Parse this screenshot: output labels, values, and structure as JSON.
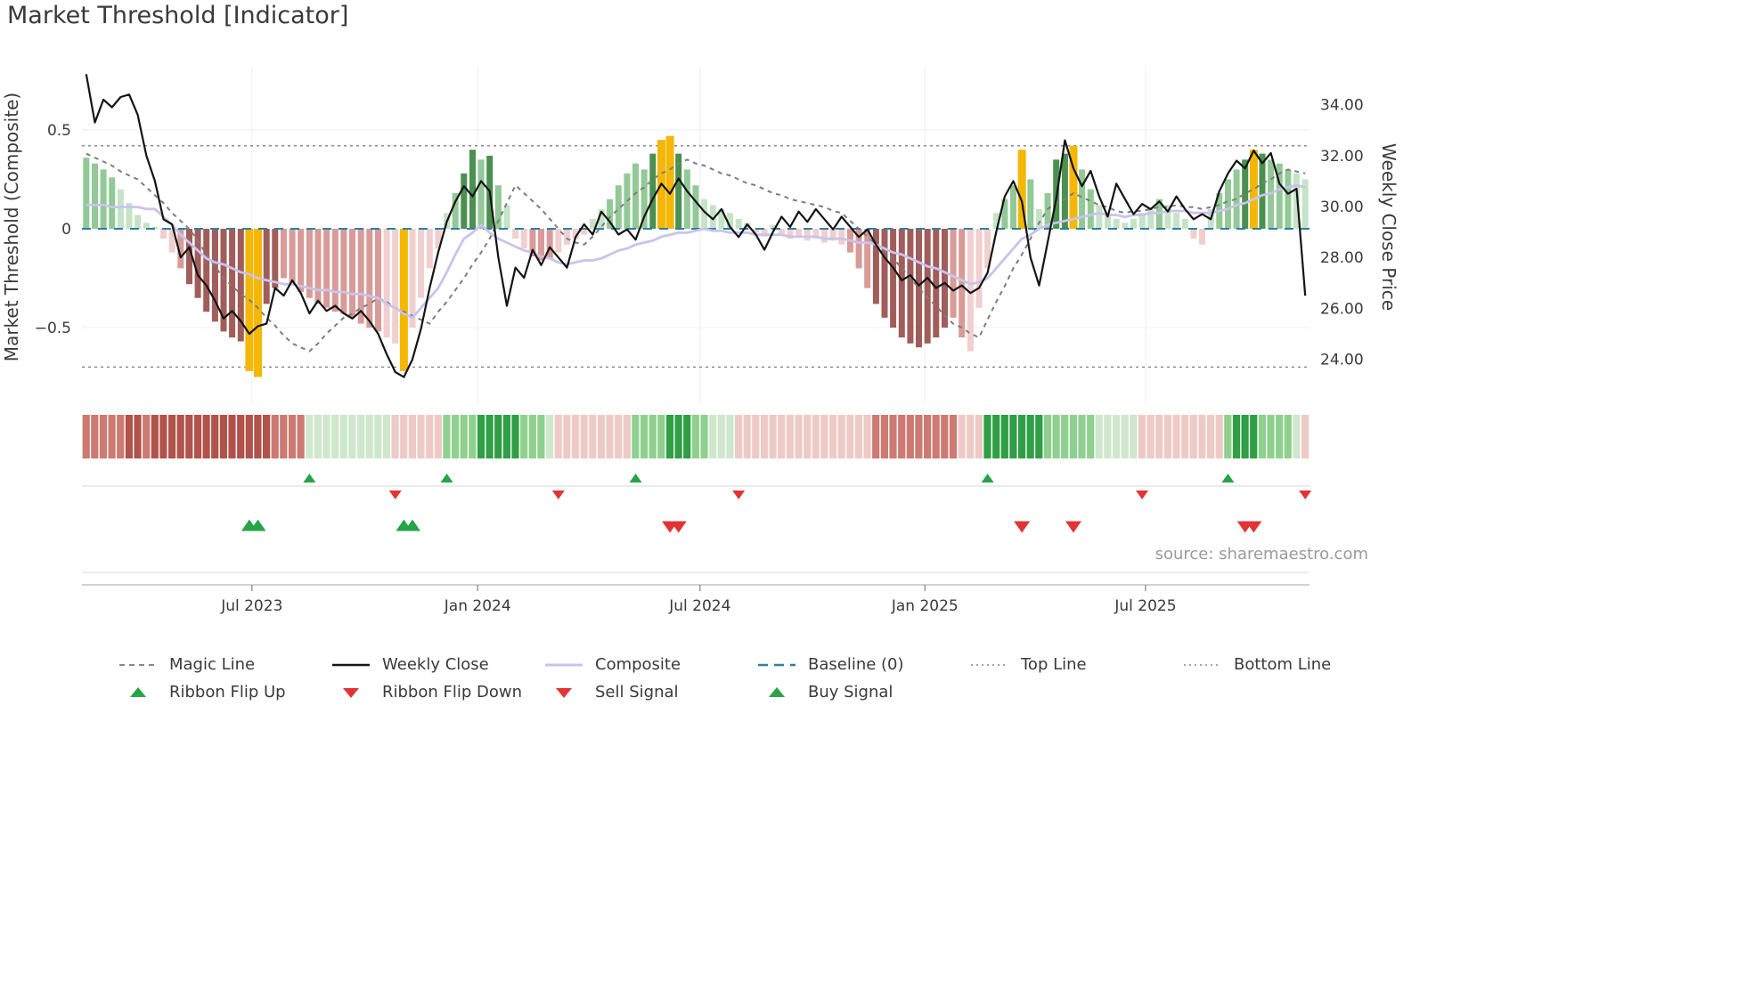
{
  "title": "Market Threshold [Indicator]",
  "source": "source: sharemaestro.com",
  "axes": {
    "left_label": "Market Threshold (Composite)",
    "right_label": "Weekly Close Price",
    "left_ticks": [
      {
        "value": 0.5,
        "label": "0.5"
      },
      {
        "value": 0.0,
        "label": "0"
      },
      {
        "value": -0.5,
        "label": "−0.5"
      }
    ],
    "right_ticks": [
      {
        "value": 34,
        "label": "34.00"
      },
      {
        "value": 32,
        "label": "32.00"
      },
      {
        "value": 30,
        "label": "30.00"
      },
      {
        "value": 28,
        "label": "28.00"
      },
      {
        "value": 26,
        "label": "26.00"
      },
      {
        "value": 24,
        "label": "24.00"
      }
    ],
    "x_ticks": [
      {
        "week": 19.8,
        "label": "Jul 2023"
      },
      {
        "week": 46.1,
        "label": "Jan 2024"
      },
      {
        "week": 72.0,
        "label": "Jul 2024"
      },
      {
        "week": 98.2,
        "label": "Jan 2025"
      },
      {
        "week": 123.9,
        "label": "Jul 2025"
      }
    ]
  },
  "colors": {
    "weekly_close": "#141414",
    "composite_line": "#c9c3ec",
    "magic_line": "#7d7d7d",
    "baseline": "#2e7fa3",
    "top_bottom_line": "#8c8c8c",
    "signal_green": "#27a348",
    "signal_red": "#e23434",
    "grid": "#efefef",
    "separator": "#e0e0e0",
    "axis_line": "#c4c4c4",
    "tick_text": "#3a3a3a"
  },
  "palette": {
    "bar": {
      "G1": "#c5e3c6",
      "G2": "#92c996",
      "G3": "#4a9050",
      "R1": "#f1cfce",
      "R2": "#d89b98",
      "R3": "#a15d59",
      "GOLD": "#f4b705"
    },
    "ribbon": {
      "G1": "#cfe7cc",
      "G2": "#8fd08f",
      "G3": "#2f9e44",
      "R1": "#eecac6",
      "R2": "#cc7a72",
      "R3": "#b1524b"
    }
  },
  "chart_data": {
    "type": "bar",
    "description": "Weekly market-threshold composite histogram with overlaid weekly close price, composite and magic lines, ribbon heatmap and trade signals. Weeks run from Feb 2023 to Nov 2025.",
    "ylim_left": [
      -0.85,
      0.85
    ],
    "ylim_right": [
      23.0,
      35.5
    ],
    "reference_lines": {
      "baseline": 0.0,
      "top_line": 0.42,
      "bottom_line": -0.7
    },
    "threshold": [
      0.36,
      0.33,
      0.3,
      0.26,
      0.2,
      0.13,
      0.07,
      0.03,
      0.01,
      -0.05,
      -0.12,
      -0.2,
      -0.28,
      -0.35,
      -0.42,
      -0.47,
      -0.52,
      -0.55,
      -0.57,
      -0.72,
      -0.75,
      -0.38,
      -0.3,
      -0.25,
      -0.28,
      -0.32,
      -0.35,
      -0.38,
      -0.4,
      -0.42,
      -0.43,
      -0.45,
      -0.48,
      -0.5,
      -0.52,
      -0.55,
      -0.58,
      -0.72,
      -0.5,
      -0.35,
      -0.2,
      -0.1,
      0.08,
      0.18,
      0.28,
      0.4,
      0.35,
      0.37,
      0.22,
      0.12,
      -0.05,
      -0.1,
      -0.14,
      -0.16,
      -0.15,
      -0.12,
      -0.08,
      -0.05,
      -0.03,
      0.05,
      0.1,
      0.15,
      0.22,
      0.28,
      0.33,
      0.3,
      0.38,
      0.45,
      0.47,
      0.38,
      0.3,
      0.22,
      0.15,
      0.12,
      0.1,
      0.08,
      0.05,
      0.03,
      -0.02,
      -0.04,
      0.02,
      -0.03,
      -0.05,
      -0.04,
      -0.06,
      -0.05,
      -0.07,
      -0.06,
      -0.08,
      -0.12,
      -0.2,
      -0.3,
      -0.38,
      -0.45,
      -0.5,
      -0.55,
      -0.58,
      -0.6,
      -0.58,
      -0.55,
      -0.5,
      -0.45,
      -0.55,
      -0.62,
      -0.4,
      -0.2,
      0.08,
      0.15,
      0.22,
      0.4,
      0.25,
      0.1,
      0.18,
      0.35,
      0.38,
      0.42,
      0.3,
      0.2,
      0.12,
      0.08,
      0.05,
      0.03,
      0.05,
      0.08,
      0.1,
      0.15,
      0.12,
      0.08,
      0.05,
      -0.05,
      -0.08,
      0.1,
      0.18,
      0.25,
      0.3,
      0.35,
      0.4,
      0.38,
      0.35,
      0.33,
      0.3,
      0.28,
      0.25
    ],
    "bar_colors": [
      "G2",
      "G2",
      "G2",
      "G2",
      "G1",
      "G1",
      "G1",
      "G1",
      "G1",
      "R1",
      "R1",
      "R2",
      "R3",
      "R3",
      "R3",
      "R3",
      "R3",
      "R3",
      "R3",
      "GOLD",
      "GOLD",
      "R3",
      "R3",
      "R2",
      "R2",
      "R2",
      "R2",
      "R2",
      "R2",
      "R2",
      "R2",
      "R2",
      "R2",
      "R2",
      "R2",
      "R1",
      "R1",
      "GOLD",
      "R1",
      "R1",
      "R1",
      "R1",
      "G1",
      "G2",
      "G3",
      "G3",
      "G2",
      "G3",
      "G2",
      "G1",
      "R1",
      "R1",
      "R2",
      "R2",
      "R2",
      "R1",
      "R1",
      "R1",
      "R1",
      "G1",
      "G1",
      "G2",
      "G2",
      "G2",
      "G2",
      "G2",
      "G3",
      "GOLD",
      "GOLD",
      "G3",
      "G2",
      "G2",
      "G1",
      "G1",
      "G1",
      "G1",
      "G1",
      "G1",
      "R1",
      "R1",
      "G1",
      "R1",
      "R1",
      "R1",
      "R1",
      "R1",
      "R1",
      "R1",
      "R1",
      "R2",
      "R2",
      "R2",
      "R3",
      "R3",
      "R3",
      "R3",
      "R3",
      "R3",
      "R3",
      "R3",
      "R3",
      "R2",
      "R2",
      "R1",
      "R1",
      "R1",
      "G1",
      "G2",
      "G2",
      "GOLD",
      "G2",
      "G1",
      "G2",
      "G3",
      "G3",
      "GOLD",
      "G2",
      "G2",
      "G1",
      "G1",
      "G1",
      "G1",
      "G1",
      "G1",
      "G1",
      "G2",
      "G1",
      "G1",
      "G1",
      "R1",
      "R1",
      "G1",
      "G2",
      "G2",
      "G2",
      "G3",
      "GOLD",
      "G3",
      "G2",
      "G2",
      "G2",
      "G1",
      "G1"
    ],
    "weekly_close": [
      35.2,
      33.3,
      34.2,
      33.9,
      34.3,
      34.4,
      33.6,
      32.0,
      31.0,
      29.5,
      29.3,
      28.0,
      28.4,
      27.3,
      26.9,
      26.3,
      25.6,
      25.9,
      25.5,
      25.0,
      25.3,
      25.4,
      26.8,
      26.5,
      27.1,
      26.6,
      25.8,
      26.3,
      25.9,
      26.1,
      25.8,
      25.6,
      25.9,
      25.5,
      25.0,
      24.2,
      23.5,
      23.3,
      24.0,
      25.2,
      26.8,
      28.2,
      29.4,
      30.2,
      30.8,
      30.4,
      31.0,
      30.6,
      28.0,
      26.1,
      27.6,
      27.2,
      28.3,
      27.7,
      28.4,
      28.0,
      27.6,
      28.8,
      29.3,
      28.9,
      29.8,
      29.4,
      28.9,
      29.1,
      28.7,
      29.6,
      30.3,
      30.9,
      30.5,
      31.1,
      30.6,
      30.2,
      29.8,
      29.5,
      29.9,
      29.2,
      28.8,
      29.3,
      28.9,
      28.3,
      29.0,
      29.6,
      29.2,
      29.8,
      29.4,
      29.9,
      29.5,
      29.1,
      29.6,
      29.2,
      28.8,
      29.1,
      28.5,
      28.0,
      27.6,
      27.1,
      27.3,
      26.9,
      27.2,
      26.8,
      27.0,
      26.7,
      26.9,
      26.6,
      26.8,
      27.4,
      29.0,
      30.4,
      31.0,
      30.2,
      28.0,
      26.9,
      28.6,
      30.3,
      32.6,
      31.5,
      30.8,
      31.4,
      30.4,
      29.6,
      30.9,
      30.3,
      29.7,
      30.1,
      29.9,
      30.2,
      29.8,
      30.4,
      29.9,
      29.5,
      29.7,
      29.5,
      30.6,
      31.3,
      31.8,
      31.5,
      32.2,
      31.7,
      32.1,
      30.9,
      30.5,
      30.7,
      26.5
    ],
    "composite": [
      0.12,
      0.12,
      0.12,
      0.11,
      0.11,
      0.11,
      0.11,
      0.1,
      0.1,
      0.06,
      0.02,
      -0.03,
      -0.07,
      -0.11,
      -0.15,
      -0.17,
      -0.18,
      -0.2,
      -0.22,
      -0.23,
      -0.25,
      -0.26,
      -0.27,
      -0.28,
      -0.28,
      -0.29,
      -0.3,
      -0.31,
      -0.31,
      -0.32,
      -0.32,
      -0.33,
      -0.33,
      -0.34,
      -0.35,
      -0.38,
      -0.4,
      -0.43,
      -0.45,
      -0.4,
      -0.35,
      -0.3,
      -0.22,
      -0.13,
      -0.05,
      -0.02,
      0.02,
      -0.02,
      -0.05,
      -0.07,
      -0.09,
      -0.11,
      -0.12,
      -0.14,
      -0.15,
      -0.17,
      -0.18,
      -0.17,
      -0.16,
      -0.16,
      -0.15,
      -0.13,
      -0.11,
      -0.1,
      -0.08,
      -0.07,
      -0.06,
      -0.04,
      -0.03,
      -0.02,
      -0.02,
      -0.01,
      0.0,
      -0.01,
      -0.01,
      -0.02,
      -0.02,
      -0.02,
      -0.03,
      -0.03,
      -0.03,
      -0.03,
      -0.04,
      -0.04,
      -0.04,
      -0.04,
      -0.05,
      -0.05,
      -0.05,
      -0.06,
      -0.07,
      -0.07,
      -0.08,
      -0.1,
      -0.12,
      -0.13,
      -0.15,
      -0.17,
      -0.19,
      -0.2,
      -0.22,
      -0.24,
      -0.26,
      -0.28,
      -0.27,
      -0.25,
      -0.2,
      -0.15,
      -0.1,
      -0.05,
      -0.03,
      0.0,
      0.02,
      0.03,
      0.04,
      0.05,
      0.06,
      0.07,
      0.08,
      0.07,
      0.07,
      0.06,
      0.07,
      0.07,
      0.08,
      0.08,
      0.09,
      0.09,
      0.09,
      0.08,
      0.08,
      0.08,
      0.09,
      0.1,
      0.12,
      0.13,
      0.15,
      0.17,
      0.18,
      0.2,
      0.21,
      0.22,
      0.21
    ],
    "magic": [
      0.38,
      0.36,
      0.34,
      0.32,
      0.29,
      0.27,
      0.25,
      0.21,
      0.17,
      0.13,
      0.08,
      0.04,
      0.0,
      -0.06,
      -0.13,
      -0.19,
      -0.25,
      -0.29,
      -0.33,
      -0.36,
      -0.4,
      -0.45,
      -0.49,
      -0.54,
      -0.58,
      -0.6,
      -0.62,
      -0.58,
      -0.53,
      -0.49,
      -0.45,
      -0.43,
      -0.4,
      -0.38,
      -0.35,
      -0.37,
      -0.4,
      -0.42,
      -0.44,
      -0.46,
      -0.48,
      -0.42,
      -0.37,
      -0.31,
      -0.25,
      -0.18,
      -0.12,
      -0.05,
      0.04,
      0.13,
      0.22,
      0.18,
      0.14,
      0.1,
      0.05,
      0.0,
      -0.05,
      -0.07,
      -0.08,
      -0.04,
      0.01,
      0.06,
      0.1,
      0.14,
      0.18,
      0.21,
      0.25,
      0.28,
      0.3,
      0.33,
      0.35,
      0.33,
      0.32,
      0.3,
      0.28,
      0.27,
      0.25,
      0.23,
      0.22,
      0.2,
      0.18,
      0.17,
      0.15,
      0.14,
      0.13,
      0.12,
      0.11,
      0.09,
      0.08,
      0.04,
      0.0,
      -0.04,
      -0.08,
      -0.11,
      -0.15,
      -0.2,
      -0.25,
      -0.3,
      -0.35,
      -0.39,
      -0.44,
      -0.48,
      -0.5,
      -0.53,
      -0.55,
      -0.46,
      -0.37,
      -0.29,
      -0.2,
      -0.13,
      -0.05,
      0.03,
      0.1,
      0.13,
      0.15,
      0.18,
      0.16,
      0.14,
      0.12,
      0.11,
      0.09,
      0.08,
      0.09,
      0.09,
      0.1,
      0.11,
      0.11,
      0.12,
      0.11,
      0.11,
      0.1,
      0.11,
      0.12,
      0.14,
      0.15,
      0.18,
      0.2,
      0.23,
      0.25,
      0.28,
      0.3,
      0.29,
      0.28
    ],
    "ribbon": [
      "R2",
      "R2",
      "R2",
      "R2",
      "R2",
      "R3",
      "R3",
      "R2",
      "R3",
      "R3",
      "R3",
      "R3",
      "R3",
      "R3",
      "R3",
      "R3",
      "R3",
      "R3",
      "R3",
      "R3",
      "R3",
      "R3",
      "R2",
      "R2",
      "R2",
      "R2",
      "G1",
      "G1",
      "G1",
      "G1",
      "G1",
      "G1",
      "G1",
      "G1",
      "G1",
      "G1",
      "R1",
      "R1",
      "R1",
      "R1",
      "R1",
      "R1",
      "G2",
      "G2",
      "G2",
      "G2",
      "G3",
      "G3",
      "G3",
      "G3",
      "G3",
      "G2",
      "G2",
      "G2",
      "G1",
      "R1",
      "R1",
      "R1",
      "R1",
      "R1",
      "R1",
      "R1",
      "R1",
      "R1",
      "G2",
      "G2",
      "G2",
      "G2",
      "G3",
      "G3",
      "G3",
      "G2",
      "G2",
      "G1",
      "G1",
      "G1",
      "R1",
      "R1",
      "R1",
      "R1",
      "R1",
      "R1",
      "R1",
      "R1",
      "R1",
      "R1",
      "R1",
      "R1",
      "R1",
      "R1",
      "R1",
      "R1",
      "R2",
      "R2",
      "R2",
      "R2",
      "R2",
      "R2",
      "R2",
      "R2",
      "R2",
      "R2",
      "R1",
      "R1",
      "R1",
      "G3",
      "G3",
      "G3",
      "G3",
      "G3",
      "G3",
      "G3",
      "G2",
      "G2",
      "G2",
      "G2",
      "G2",
      "G2",
      "G1",
      "G1",
      "G1",
      "G1",
      "G1",
      "R1",
      "R1",
      "R1",
      "R1",
      "R1",
      "R1",
      "R1",
      "R1",
      "R1",
      "R1",
      "G2",
      "G3",
      "G3",
      "G3",
      "G2",
      "G2",
      "G2",
      "G2",
      "G1",
      "R1"
    ],
    "signals": {
      "ribbon_flip_up": [
        26,
        42,
        64,
        105,
        133
      ],
      "ribbon_flip_down": [
        36,
        55,
        76,
        123,
        142
      ],
      "buy_signal": [
        19,
        20,
        37,
        38
      ],
      "sell_signal": [
        68,
        69,
        109,
        115,
        135,
        136
      ]
    }
  },
  "legend": {
    "row1": [
      {
        "label": "Magic Line",
        "swatch": "dashed-gray"
      },
      {
        "label": "Weekly Close",
        "swatch": "solid-black"
      },
      {
        "label": "Composite",
        "swatch": "solid-lavender"
      },
      {
        "label": "Baseline (0)",
        "swatch": "dashed-blue"
      },
      {
        "label": "Top Line",
        "swatch": "dotted-gray"
      },
      {
        "label": "Bottom Line",
        "swatch": "dotted-gray"
      }
    ],
    "row2": [
      {
        "label": "Ribbon Flip Up",
        "swatch": "triangle-up-green"
      },
      {
        "label": "Ribbon Flip Down",
        "swatch": "triangle-down-red"
      },
      {
        "label": "Sell Signal",
        "swatch": "triangle-down-red"
      },
      {
        "label": "Buy Signal",
        "swatch": "triangle-up-green"
      }
    ]
  }
}
